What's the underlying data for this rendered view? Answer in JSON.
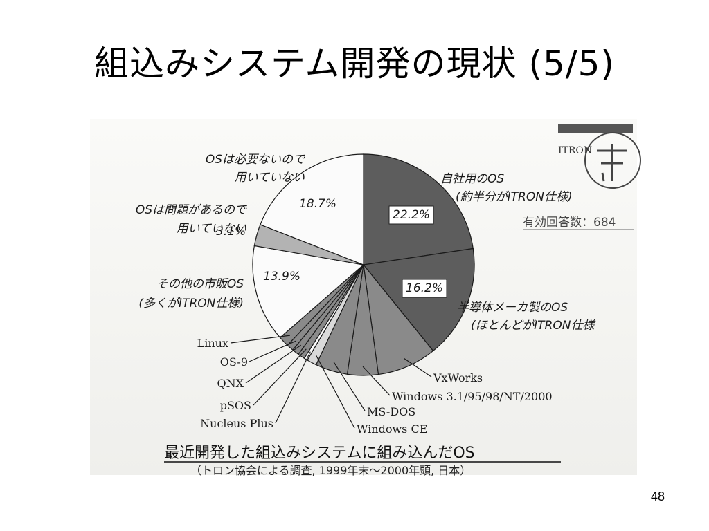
{
  "slide": {
    "title": "組込みシステム開発の現状 (5/5)",
    "page_number": "48"
  },
  "figure": {
    "caption": "最近開発した組込みシステムに組み込んだOS",
    "subcaption": "（トロン協会による調査, 1999年末〜2000年頭, 日本）",
    "respondents": "有効回答数：684",
    "logo_text": "ITRON"
  },
  "colors": {
    "dark": "#5d5d5d",
    "mid": "#8a8a8a",
    "light": "#b3b3b3",
    "pale": "#d9d9d9",
    "white": "#fbfbfb",
    "line": "#1a1a1a"
  },
  "chart_data": {
    "type": "pie",
    "title": "最近開発した組込みシステムに組み込んだOS",
    "slices": [
      {
        "label": "自社用のOS",
        "label_line2": "(約半分がITRON仕様)",
        "value": 22.2,
        "value_label": "22.2%",
        "shade": "dark"
      },
      {
        "label": "半導体メーカ製のOS",
        "label_line2": "(ほとんどがITRON仕様",
        "value": 16.2,
        "value_label": "16.2%",
        "shade": "dark"
      },
      {
        "label": "VxWorks",
        "value": 8.5,
        "shade": "mid"
      },
      {
        "label": "Windows 3.1/95/98/NT/2000",
        "value": 4.4,
        "shade": "mid"
      },
      {
        "label": "MS-DOS",
        "value": 4.6,
        "shade": "mid"
      },
      {
        "label": "Windows CE",
        "value": 1.4,
        "shade": "pale"
      },
      {
        "label": "Nucleus Plus",
        "value": 0.5,
        "shade": "white"
      },
      {
        "label": "pSOS",
        "value": 1.0,
        "shade": "mid"
      },
      {
        "label": "QNX",
        "value": 1.0,
        "shade": "mid"
      },
      {
        "label": "OS-9",
        "value": 1.0,
        "shade": "mid"
      },
      {
        "label": "Linux",
        "value": 1.5,
        "shade": "mid"
      },
      {
        "label": "その他の市販OS",
        "label_line2": "(多くがITRON仕様)",
        "value": 13.9,
        "value_label": "13.9%",
        "shade": "white"
      },
      {
        "label": "OSは問題があるので",
        "label_line2": "用いていない",
        "value": 3.1,
        "value_label": "3.1%",
        "shade": "light"
      },
      {
        "label": "OSは必要ないので",
        "label_line2": "用いていない",
        "value": 18.7,
        "value_label": "18.7%",
        "shade": "white"
      }
    ]
  }
}
